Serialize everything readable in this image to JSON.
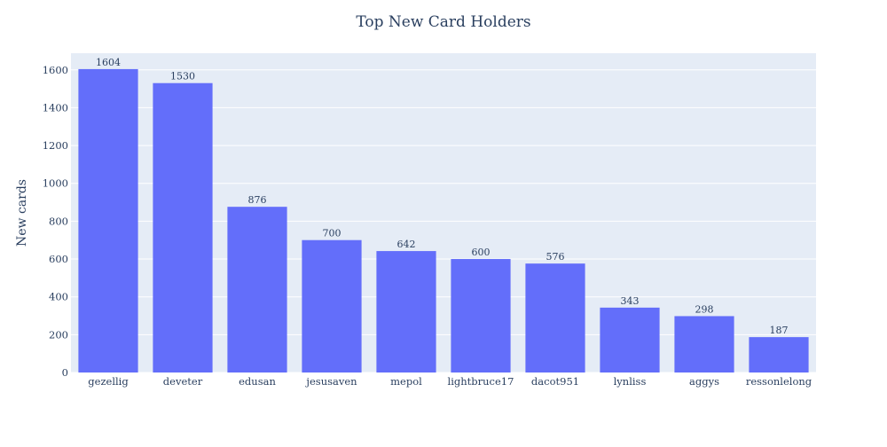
{
  "colors": {
    "plot_bg": "#e5ecf6",
    "grid": "#ffffff",
    "bar": "#636efa",
    "text": "#2a3f5f"
  },
  "chart_data": {
    "type": "bar",
    "title": "Top New Card Holders",
    "xlabel": "",
    "ylabel": "New cards",
    "categories": [
      "gezellig",
      "deveter",
      "edusan",
      "jesusaven",
      "mepol",
      "lightbruce17",
      "dacot951",
      "lynliss",
      "aggys",
      "ressonlelong"
    ],
    "values": [
      1604,
      1530,
      876,
      700,
      642,
      600,
      576,
      343,
      298,
      187
    ],
    "data_labels": [
      "1604",
      "1530",
      "876",
      "700",
      "642",
      "600",
      "576",
      "343",
      "298",
      "187"
    ],
    "ylim": [
      0,
      1688
    ],
    "yticks": [
      0,
      200,
      400,
      600,
      800,
      1000,
      1200,
      1400,
      1600
    ],
    "grid": true,
    "legend": "none"
  }
}
